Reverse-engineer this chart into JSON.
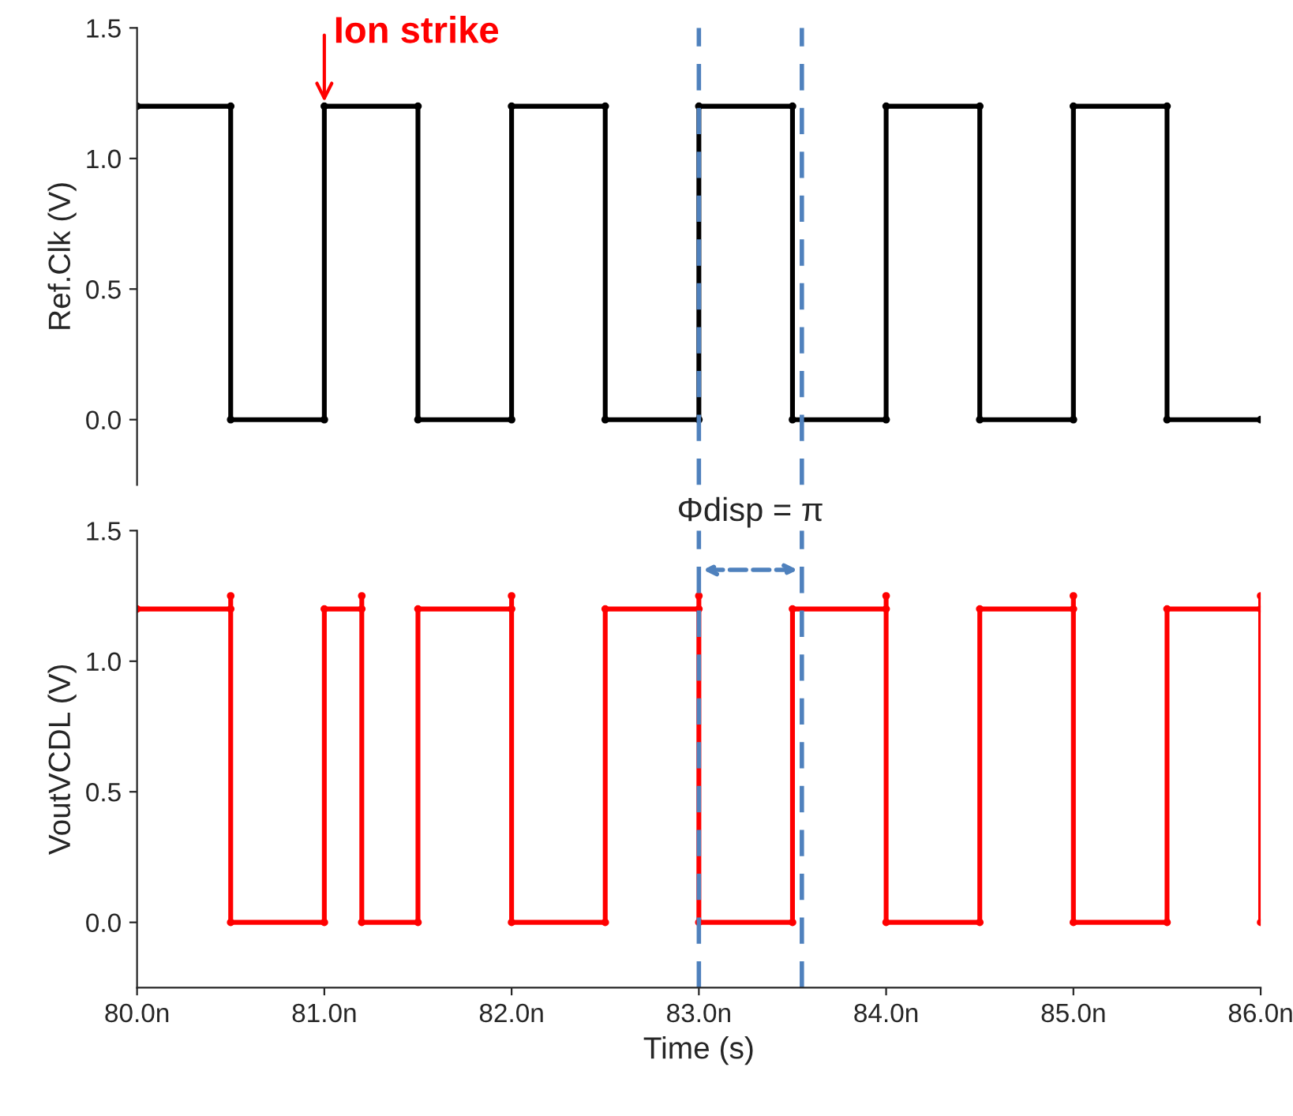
{
  "chart_data": [
    {
      "type": "line",
      "ylabel": "Ref.Clk (V)",
      "xlim": [
        80,
        86
      ],
      "ylim": [
        -0.25,
        1.5
      ],
      "yticks": [
        {
          "value": 0,
          "label": "0.0"
        },
        {
          "value": 0.5,
          "label": "0.5"
        },
        {
          "value": 1.0,
          "label": "1.0"
        },
        {
          "value": 1.5,
          "label": "1.5"
        }
      ],
      "tick_labels": "y",
      "marker": "circle",
      "line_style": "solid",
      "grid": false,
      "legend": false,
      "series": [
        {
          "color": "#000000",
          "x": [
            80.0,
            80.5,
            80.5,
            81.0,
            81.0,
            81.5,
            81.5,
            82.0,
            82.0,
            82.5,
            82.5,
            83.0,
            83.0,
            83.5,
            83.5,
            84.0,
            84.0,
            84.5,
            84.5,
            85.0,
            85.0,
            85.5,
            85.5,
            86.0
          ],
          "values": [
            1.2,
            1.2,
            0,
            0,
            1.2,
            1.2,
            0,
            0,
            1.2,
            1.2,
            0,
            0,
            1.2,
            1.2,
            0,
            0,
            1.2,
            1.2,
            0,
            0,
            1.2,
            1.2,
            0,
            0
          ]
        }
      ],
      "annotations": [
        {
          "text": "Ion strike",
          "x": 81.0,
          "y": 1.2
        }
      ],
      "ref_lines": [
        {
          "axis": "x",
          "value": 83.0,
          "color": "#4f81bd",
          "line_style": "dashed"
        },
        {
          "axis": "x",
          "value": 83.55,
          "color": "#4f81bd",
          "line_style": "dashed"
        }
      ]
    },
    {
      "type": "line",
      "ylabel": "VoutVCDL (V)",
      "xlabel": "Time (s)",
      "xlim": [
        80,
        86
      ],
      "ylim": [
        -0.25,
        1.5
      ],
      "xticks": [
        {
          "value": 80,
          "label": "80.0n"
        },
        {
          "value": 81,
          "label": "81.0n"
        },
        {
          "value": 82,
          "label": "82.0n"
        },
        {
          "value": 83,
          "label": "83.0n"
        },
        {
          "value": 84,
          "label": "84.0n"
        },
        {
          "value": 85,
          "label": "85.0n"
        },
        {
          "value": 86,
          "label": "86.0n"
        }
      ],
      "yticks": [
        {
          "value": 0,
          "label": "0.0"
        },
        {
          "value": 0.5,
          "label": "0.5"
        },
        {
          "value": 1.0,
          "label": "1.0"
        },
        {
          "value": 1.5,
          "label": "1.5"
        }
      ],
      "marker": "circle",
      "line_style": "solid",
      "grid": false,
      "legend": false,
      "series": [
        {
          "color": "#ff0000",
          "x": [
            80.0,
            80.5,
            80.5,
            80.5,
            81.0,
            81.0,
            81.2,
            81.2,
            81.2,
            81.5,
            81.5,
            82.0,
            82.0,
            82.0,
            82.5,
            82.5,
            83.0,
            83.0,
            83.0,
            83.5,
            83.5,
            84.0,
            84.0,
            84.0,
            84.5,
            84.5,
            85.0,
            85.0,
            85.0,
            85.5,
            85.5,
            86.0,
            86.0,
            86.0
          ],
          "values": [
            1.2,
            1.2,
            1.25,
            0,
            0,
            1.2,
            1.2,
            1.25,
            0,
            0,
            1.2,
            1.2,
            1.25,
            0,
            0,
            1.2,
            1.2,
            1.25,
            0,
            0,
            1.2,
            1.2,
            1.25,
            0,
            0,
            1.2,
            1.2,
            1.25,
            0,
            0,
            1.2,
            1.2,
            1.25,
            0
          ]
        }
      ],
      "annotations": [
        {
          "text": "Φdisp = π",
          "x": 83.0,
          "y": 1.45
        }
      ],
      "ref_lines": [
        {
          "axis": "x",
          "value": 83.0,
          "color": "#4f81bd",
          "line_style": "dashed"
        },
        {
          "axis": "x",
          "value": 83.55,
          "color": "#4f81bd",
          "line_style": "dashed"
        }
      ]
    }
  ]
}
